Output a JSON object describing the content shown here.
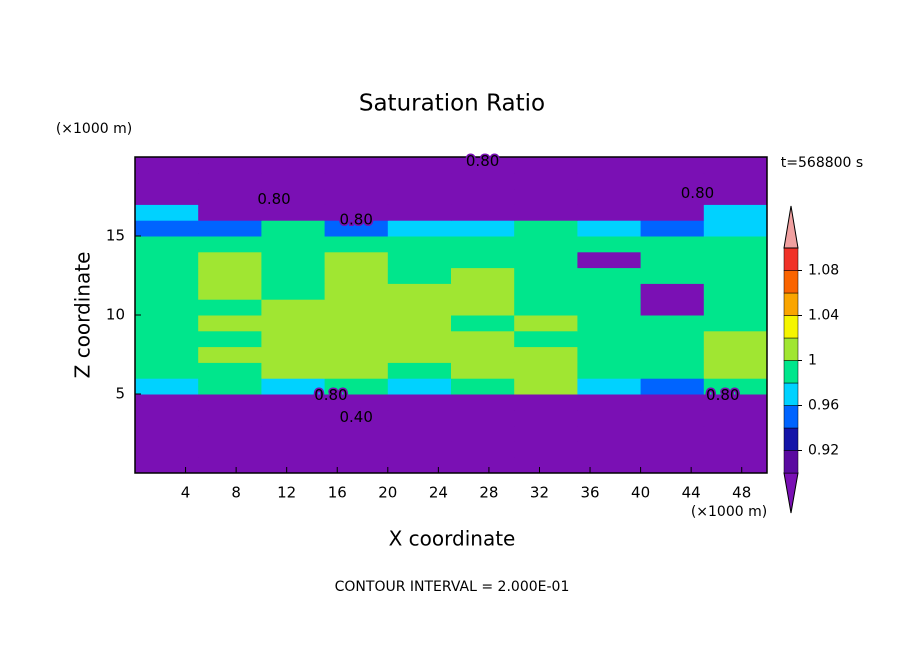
{
  "chart_data": {
    "type": "contour",
    "title": "Saturation Ratio",
    "x_label": "X coordinate",
    "y_label": "Z coordinate",
    "x_unit": "(×1000 m)",
    "y_unit": "(×1000 m)",
    "time_label": "t=568800 s",
    "footer": "CONTOUR INTERVAL = 2.000E-01",
    "xlim": [
      0,
      50
    ],
    "ylim": [
      0,
      20
    ],
    "xticks": [
      4,
      8,
      12,
      16,
      20,
      24,
      28,
      32,
      36,
      40,
      44,
      48
    ],
    "yticks": [
      5,
      10,
      15
    ],
    "field": {
      "x": [
        0,
        5,
        10,
        15,
        20,
        25,
        30,
        35,
        40,
        45,
        50
      ],
      "z": [
        0,
        1,
        2,
        3,
        4,
        5,
        6,
        7,
        8,
        9,
        10,
        11,
        12,
        13,
        14,
        15,
        16,
        17,
        18,
        19,
        20
      ],
      "values": [
        [
          0.3,
          0.3,
          0.3,
          0.3,
          0.3,
          0.3,
          0.3,
          0.3,
          0.3,
          0.3
        ],
        [
          0.4,
          0.4,
          0.4,
          0.4,
          0.4,
          0.4,
          0.4,
          0.4,
          0.4,
          0.4
        ],
        [
          0.5,
          0.5,
          0.5,
          0.5,
          0.5,
          0.5,
          0.5,
          0.5,
          0.5,
          0.5
        ],
        [
          0.6,
          0.6,
          0.6,
          0.6,
          0.6,
          0.6,
          0.6,
          0.6,
          0.6,
          0.6
        ],
        [
          0.8,
          0.8,
          0.8,
          0.8,
          0.8,
          0.8,
          0.8,
          0.8,
          0.8,
          0.8
        ],
        [
          0.97,
          0.99,
          0.97,
          0.99,
          0.97,
          0.99,
          1.01,
          0.97,
          0.95,
          0.99
        ],
        [
          0.99,
          0.99,
          1.01,
          1.01,
          0.99,
          1.01,
          1.01,
          0.99,
          0.99,
          1.01
        ],
        [
          0.99,
          1.01,
          1.01,
          1.01,
          1.01,
          1.01,
          1.01,
          0.99,
          0.99,
          1.01
        ],
        [
          0.99,
          0.99,
          1.01,
          1.01,
          1.01,
          1.01,
          0.99,
          0.99,
          0.99,
          1.01
        ],
        [
          0.99,
          1.01,
          1.01,
          1.01,
          1.01,
          0.99,
          1.01,
          0.99,
          0.99,
          0.99
        ],
        [
          0.99,
          0.99,
          1.01,
          1.01,
          1.01,
          1.01,
          0.99,
          0.99,
          0.88,
          0.99
        ],
        [
          0.99,
          1.01,
          0.99,
          1.01,
          1.01,
          1.01,
          0.99,
          0.99,
          0.88,
          0.99
        ],
        [
          0.99,
          1.01,
          0.99,
          1.01,
          0.99,
          1.01,
          0.99,
          0.99,
          0.99,
          0.99
        ],
        [
          0.99,
          1.01,
          0.99,
          1.01,
          0.99,
          0.99,
          0.99,
          0.88,
          0.99,
          0.99
        ],
        [
          0.99,
          0.99,
          0.99,
          0.99,
          0.99,
          0.99,
          0.99,
          0.99,
          0.99,
          0.99
        ],
        [
          0.95,
          0.95,
          0.99,
          0.95,
          0.97,
          0.97,
          0.99,
          0.97,
          0.95,
          0.97
        ],
        [
          0.97,
          0.8,
          0.8,
          0.8,
          0.8,
          0.8,
          0.8,
          0.8,
          0.8,
          0.97
        ],
        [
          0.7,
          0.7,
          0.7,
          0.7,
          0.7,
          0.7,
          0.7,
          0.7,
          0.7,
          0.7
        ],
        [
          0.6,
          0.6,
          0.6,
          0.6,
          0.6,
          0.6,
          0.6,
          0.6,
          0.6,
          0.6
        ],
        [
          0.6,
          0.6,
          0.6,
          0.6,
          0.6,
          0.6,
          0.6,
          0.6,
          0.6,
          0.6
        ]
      ]
    },
    "levels": [
      0.9,
      0.92,
      0.94,
      0.96,
      0.98,
      1,
      1.02,
      1.04,
      1.06,
      1.08,
      1.1
    ],
    "colors": [
      "#7a10b4",
      "#5a0aa0",
      "#1414a8",
      "#0064ff",
      "#00d2ff",
      "#00e68c",
      "#a0e632",
      "#f5f500",
      "#faa500",
      "#fa6400",
      "#f03228",
      "#f0a0a0"
    ],
    "colorbar_ticks": [
      0.92,
      0.96,
      1,
      1.04,
      1.08
    ],
    "contour_labels": [
      {
        "value": 0.8,
        "label": "0.80",
        "x": 27.5,
        "z": 19.7
      },
      {
        "value": 0.8,
        "label": "0.80",
        "x": 44.5,
        "z": 17.7
      },
      {
        "value": 0.8,
        "label": "0.80",
        "x": 11,
        "z": 17.3
      },
      {
        "value": 0.8,
        "label": "0.80",
        "x": 17.5,
        "z": 16
      },
      {
        "value": 0.8,
        "label": "0.80",
        "x": 15.5,
        "z": 4.9
      },
      {
        "value": 0.8,
        "label": "0.80",
        "x": 46.5,
        "z": 4.9
      },
      {
        "value": 0.4,
        "label": "0.40",
        "x": 17.5,
        "z": 3.5
      }
    ]
  }
}
